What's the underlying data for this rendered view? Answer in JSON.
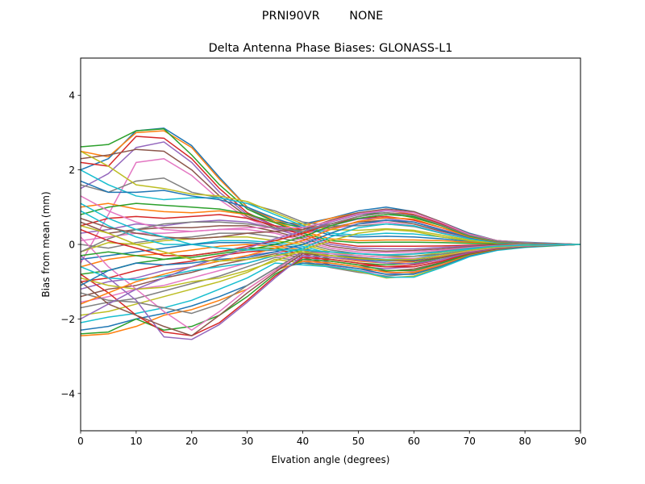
{
  "header": {
    "suptitle": "PRNI90VR        NONE"
  },
  "chart_data": {
    "type": "line",
    "title": "Delta Antenna Phase Biases: GLONASS-L1",
    "xlabel": "Elvation angle (degrees)",
    "ylabel": "Bias from mean (mm)",
    "xlim": [
      0,
      90
    ],
    "ylim": [
      -5,
      5
    ],
    "xticks": [
      0,
      10,
      20,
      30,
      40,
      50,
      60,
      70,
      80,
      90
    ],
    "yticks": [
      -4,
      -2,
      0,
      2,
      4
    ],
    "ytick_labels": [
      "−4",
      "−2",
      "0",
      "2",
      "4"
    ],
    "grid": false,
    "legend": "none",
    "palette": [
      "#1f77b4",
      "#ff7f0e",
      "#2ca02c",
      "#d62728",
      "#9467bd",
      "#8c564b",
      "#e377c2",
      "#7f7f7f",
      "#bcbd22",
      "#17becf"
    ],
    "x": [
      0,
      5,
      10,
      15,
      20,
      25,
      30,
      35,
      40,
      45,
      50,
      55,
      60,
      65,
      70,
      75,
      80,
      85,
      90
    ],
    "series": [
      {
        "values": [
          2.0,
          2.3,
          3.05,
          3.12,
          2.65,
          1.8,
          1.0,
          0.6,
          0.55,
          0.7,
          0.9,
          1.0,
          0.88,
          0.6,
          0.3,
          0.1,
          0.06,
          0.03,
          0.0
        ]
      },
      {
        "values": [
          2.5,
          2.35,
          3.0,
          3.05,
          2.6,
          1.75,
          1.0,
          0.65,
          0.5,
          0.7,
          0.85,
          0.92,
          0.8,
          0.55,
          0.28,
          0.1,
          0.05,
          0.02,
          0.0
        ]
      },
      {
        "values": [
          2.62,
          2.68,
          3.05,
          3.1,
          2.4,
          1.6,
          0.95,
          0.6,
          0.45,
          0.62,
          0.8,
          0.85,
          0.72,
          0.5,
          0.25,
          0.08,
          0.05,
          0.02,
          0.0
        ]
      },
      {
        "values": [
          2.2,
          2.1,
          2.9,
          2.85,
          2.3,
          1.5,
          0.85,
          0.5,
          0.4,
          0.55,
          0.7,
          0.75,
          0.65,
          0.45,
          0.22,
          0.08,
          0.04,
          0.02,
          0.0
        ]
      },
      {
        "values": [
          1.5,
          1.9,
          2.6,
          2.75,
          2.2,
          1.4,
          0.8,
          0.5,
          0.35,
          0.5,
          0.68,
          0.7,
          0.6,
          0.4,
          0.2,
          0.07,
          0.04,
          0.02,
          0.0
        ]
      },
      {
        "values": [
          2.3,
          2.4,
          2.55,
          2.5,
          2.0,
          1.3,
          0.75,
          0.45,
          0.3,
          0.45,
          0.6,
          0.65,
          0.55,
          0.35,
          0.18,
          0.06,
          0.03,
          0.01,
          0.0
        ]
      },
      {
        "values": [
          -0.5,
          0.8,
          2.2,
          2.3,
          1.85,
          1.2,
          0.7,
          0.4,
          0.3,
          0.4,
          0.55,
          0.6,
          0.5,
          0.32,
          0.16,
          0.05,
          0.03,
          0.01,
          0.0
        ]
      },
      {
        "values": [
          1.6,
          1.4,
          1.7,
          1.78,
          1.4,
          1.25,
          1.1,
          0.9,
          0.6,
          0.5,
          0.5,
          0.55,
          0.48,
          0.3,
          0.15,
          0.05,
          0.03,
          0.01,
          0.0
        ]
      },
      {
        "values": [
          2.5,
          2.1,
          1.6,
          1.5,
          1.35,
          1.3,
          1.15,
          0.85,
          0.55,
          0.4,
          0.38,
          0.42,
          0.38,
          0.25,
          0.12,
          0.04,
          0.02,
          0.01,
          0.0
        ]
      },
      {
        "values": [
          2.0,
          1.6,
          1.3,
          1.2,
          1.25,
          1.25,
          1.1,
          0.8,
          0.5,
          0.3,
          0.25,
          0.3,
          0.28,
          0.2,
          0.1,
          0.04,
          0.02,
          0.01,
          0.0
        ]
      },
      {
        "values": [
          1.7,
          1.4,
          1.4,
          1.45,
          1.3,
          1.2,
          1.0,
          0.7,
          0.45,
          0.25,
          0.2,
          0.22,
          0.2,
          0.15,
          0.08,
          0.03,
          0.02,
          0.01,
          0.0
        ]
      },
      {
        "values": [
          1.0,
          1.1,
          0.95,
          0.88,
          0.85,
          0.9,
          0.8,
          0.6,
          0.35,
          0.15,
          0.1,
          0.12,
          0.12,
          0.1,
          0.06,
          0.02,
          0.01,
          0.0,
          0.0
        ]
      },
      {
        "values": [
          0.8,
          1.0,
          1.1,
          1.05,
          1.0,
          0.95,
          0.82,
          0.58,
          0.3,
          0.1,
          0.05,
          0.06,
          0.06,
          0.05,
          0.03,
          0.01,
          0.01,
          0.0,
          0.0
        ]
      },
      {
        "values": [
          0.5,
          0.7,
          0.75,
          0.7,
          0.75,
          0.8,
          0.7,
          0.5,
          0.25,
          0.05,
          -0.05,
          -0.05,
          -0.05,
          -0.04,
          -0.02,
          -0.01,
          0.0,
          0.0,
          0.0
        ]
      },
      {
        "values": [
          0.3,
          0.4,
          0.55,
          0.5,
          0.6,
          0.65,
          0.6,
          0.42,
          0.2,
          0.0,
          -0.1,
          -0.12,
          -0.12,
          -0.08,
          -0.04,
          -0.02,
          -0.01,
          0.0,
          0.0
        ]
      },
      {
        "values": [
          0.6,
          0.3,
          0.4,
          0.45,
          0.45,
          0.5,
          0.5,
          0.35,
          0.15,
          -0.05,
          -0.15,
          -0.18,
          -0.16,
          -0.12,
          -0.06,
          -0.02,
          -0.01,
          0.0,
          0.0
        ]
      },
      {
        "values": [
          0.1,
          0.2,
          0.3,
          0.3,
          0.35,
          0.4,
          0.4,
          0.3,
          0.1,
          -0.1,
          -0.2,
          -0.22,
          -0.2,
          -0.15,
          -0.08,
          -0.03,
          -0.01,
          0.0,
          0.0
        ]
      },
      {
        "values": [
          0.0,
          -0.1,
          0.05,
          0.15,
          0.2,
          0.3,
          0.3,
          0.2,
          0.05,
          -0.15,
          -0.25,
          -0.28,
          -0.25,
          -0.18,
          -0.1,
          -0.04,
          -0.02,
          -0.01,
          0.0
        ]
      },
      {
        "values": [
          -0.2,
          0.05,
          0.0,
          0.1,
          0.15,
          0.2,
          0.2,
          0.1,
          0.0,
          -0.2,
          -0.3,
          -0.35,
          -0.32,
          -0.22,
          -0.12,
          -0.05,
          -0.02,
          -0.01,
          0.0
        ]
      },
      {
        "values": [
          0.9,
          0.5,
          0.2,
          0.0,
          0.0,
          0.1,
          0.1,
          0.05,
          -0.05,
          -0.25,
          -0.35,
          -0.4,
          -0.38,
          -0.26,
          -0.14,
          -0.06,
          -0.03,
          -0.01,
          0.0
        ]
      },
      {
        "values": [
          -0.4,
          -0.3,
          -0.2,
          -0.1,
          0.0,
          0.05,
          0.05,
          0.0,
          -0.1,
          -0.3,
          -0.4,
          -0.45,
          -0.42,
          -0.3,
          -0.16,
          -0.07,
          -0.03,
          -0.01,
          0.0
        ]
      },
      {
        "values": [
          -0.6,
          -0.4,
          -0.3,
          -0.25,
          -0.15,
          -0.05,
          0.0,
          -0.05,
          -0.15,
          -0.35,
          -0.45,
          -0.5,
          -0.46,
          -0.33,
          -0.18,
          -0.08,
          -0.04,
          -0.02,
          0.0
        ]
      },
      {
        "values": [
          -0.8,
          -0.7,
          -0.5,
          -0.4,
          -0.3,
          -0.2,
          -0.1,
          -0.1,
          -0.2,
          -0.4,
          -0.5,
          -0.55,
          -0.5,
          -0.36,
          -0.2,
          -0.09,
          -0.04,
          -0.02,
          0.0
        ]
      },
      {
        "values": [
          -1.0,
          -0.9,
          -0.7,
          -0.55,
          -0.45,
          -0.3,
          -0.2,
          -0.15,
          -0.25,
          -0.45,
          -0.55,
          -0.6,
          -0.55,
          -0.4,
          -0.22,
          -0.1,
          -0.05,
          -0.02,
          0.0
        ]
      },
      {
        "values": [
          -1.2,
          -1.0,
          -0.9,
          -0.7,
          -0.6,
          -0.45,
          -0.3,
          -0.2,
          -0.3,
          -0.5,
          -0.6,
          -0.65,
          -0.6,
          -0.44,
          -0.24,
          -0.11,
          -0.05,
          -0.02,
          0.0
        ]
      },
      {
        "values": [
          -1.4,
          -1.2,
          -1.1,
          -0.9,
          -0.75,
          -0.55,
          -0.4,
          -0.25,
          -0.35,
          -0.55,
          -0.65,
          -0.72,
          -0.66,
          -0.48,
          -0.26,
          -0.12,
          -0.06,
          -0.03,
          0.0
        ]
      },
      {
        "values": [
          -1.55,
          -1.4,
          -1.2,
          -1.1,
          -0.9,
          -0.7,
          -0.5,
          -0.3,
          -0.4,
          -0.58,
          -0.7,
          -0.8,
          -0.72,
          -0.52,
          -0.28,
          -0.13,
          -0.06,
          -0.03,
          0.0
        ]
      },
      {
        "values": [
          -1.7,
          -1.55,
          -1.45,
          -1.25,
          -1.05,
          -0.85,
          -0.6,
          -0.35,
          -0.45,
          -0.62,
          -0.75,
          -0.85,
          -0.78,
          -0.56,
          -0.3,
          -0.14,
          -0.07,
          -0.03,
          0.0
        ]
      },
      {
        "values": [
          -1.9,
          -1.8,
          -1.6,
          -1.4,
          -1.2,
          -1.0,
          -0.75,
          -0.4,
          -0.5,
          -0.6,
          -0.72,
          -0.9,
          -0.85,
          -0.6,
          -0.32,
          -0.15,
          -0.07,
          -0.03,
          0.0
        ]
      },
      {
        "values": [
          -2.1,
          -1.95,
          -1.85,
          -1.7,
          -1.5,
          -1.2,
          -0.9,
          -0.5,
          -0.55,
          -0.6,
          -0.7,
          -0.88,
          -0.88,
          -0.62,
          -0.33,
          -0.16,
          -0.08,
          -0.04,
          0.0
        ]
      },
      {
        "values": [
          -2.3,
          -2.2,
          -2.0,
          -1.85,
          -1.65,
          -1.4,
          -1.1,
          -0.65,
          -0.5,
          -0.55,
          -0.65,
          -0.8,
          -0.8,
          -0.58,
          -0.3,
          -0.14,
          -0.07,
          -0.03,
          0.0
        ]
      },
      {
        "values": [
          -2.45,
          -2.4,
          -2.2,
          -1.9,
          -1.75,
          -1.5,
          -1.2,
          -0.7,
          -0.45,
          -0.5,
          -0.6,
          -0.75,
          -0.75,
          -0.55,
          -0.28,
          -0.13,
          -0.06,
          -0.03,
          0.0
        ]
      },
      {
        "values": [
          -2.4,
          -2.35,
          -2.0,
          -2.3,
          -2.2,
          -1.9,
          -1.4,
          -0.8,
          -0.4,
          -0.45,
          -0.55,
          -0.7,
          -0.7,
          -0.5,
          -0.26,
          -0.12,
          -0.06,
          -0.03,
          0.0
        ]
      },
      {
        "values": [
          -0.8,
          -1.3,
          -1.9,
          -2.35,
          -2.45,
          -2.1,
          -1.5,
          -0.85,
          -0.35,
          -0.4,
          -0.5,
          -0.6,
          -0.6,
          -0.45,
          -0.24,
          -0.11,
          -0.05,
          -0.02,
          0.0
        ]
      },
      {
        "values": [
          -0.3,
          -0.9,
          -1.5,
          -2.48,
          -2.55,
          -2.15,
          -1.55,
          -0.9,
          -0.3,
          -0.35,
          -0.42,
          -0.5,
          -0.52,
          -0.4,
          -0.22,
          -0.1,
          -0.05,
          -0.02,
          0.0
        ]
      },
      {
        "values": [
          -1.0,
          -1.6,
          -1.9,
          -2.2,
          -2.45,
          -1.9,
          -1.3,
          -0.75,
          -0.25,
          -0.3,
          -0.35,
          -0.42,
          -0.45,
          -0.35,
          -0.2,
          -0.09,
          -0.04,
          -0.02,
          0.0
        ]
      },
      {
        "values": [
          0.2,
          -0.6,
          -1.2,
          -1.8,
          -2.3,
          -1.8,
          -1.2,
          -0.7,
          -0.2,
          -0.25,
          -0.3,
          -0.35,
          -0.38,
          -0.3,
          -0.18,
          -0.08,
          -0.04,
          -0.02,
          0.0
        ]
      },
      {
        "values": [
          -1.3,
          -1.5,
          -1.55,
          -1.7,
          -1.85,
          -1.6,
          -1.1,
          -0.65,
          -0.2,
          -0.2,
          -0.25,
          -0.3,
          -0.32,
          -0.26,
          -0.16,
          -0.07,
          -0.03,
          -0.01,
          0.0
        ]
      },
      {
        "values": [
          -0.9,
          -1.1,
          -1.2,
          -1.15,
          -1.0,
          -0.9,
          -0.7,
          -0.45,
          -0.15,
          0.1,
          0.3,
          0.4,
          0.35,
          0.2,
          0.1,
          0.04,
          0.02,
          0.01,
          0.0
        ]
      },
      {
        "values": [
          -0.6,
          -0.9,
          -0.95,
          -0.85,
          -0.7,
          -0.6,
          -0.5,
          -0.3,
          -0.1,
          0.2,
          0.45,
          0.55,
          0.5,
          0.3,
          0.15,
          0.05,
          0.02,
          0.01,
          0.0
        ]
      },
      {
        "values": [
          -1.1,
          -0.7,
          -0.5,
          -0.55,
          -0.5,
          -0.4,
          -0.35,
          -0.2,
          0.0,
          0.3,
          0.55,
          0.65,
          0.6,
          0.38,
          0.18,
          0.06,
          0.03,
          0.01,
          0.0
        ]
      },
      {
        "values": [
          -1.6,
          -1.3,
          -1.0,
          -0.8,
          -0.6,
          -0.45,
          -0.3,
          -0.1,
          0.1,
          0.4,
          0.62,
          0.72,
          0.68,
          0.45,
          0.2,
          0.07,
          0.03,
          0.01,
          0.0
        ]
      },
      {
        "values": [
          -0.3,
          -0.2,
          -0.3,
          -0.4,
          -0.35,
          -0.25,
          -0.15,
          0.0,
          0.2,
          0.5,
          0.7,
          0.8,
          0.75,
          0.5,
          0.22,
          0.08,
          0.04,
          0.02,
          0.0
        ]
      },
      {
        "values": [
          0.4,
          0.1,
          -0.1,
          -0.3,
          -0.3,
          -0.2,
          -0.05,
          0.1,
          0.3,
          0.55,
          0.75,
          0.85,
          0.8,
          0.55,
          0.25,
          0.09,
          0.04,
          0.02,
          0.0
        ]
      },
      {
        "values": [
          -2.0,
          -1.6,
          -1.2,
          -0.9,
          -0.6,
          -0.35,
          -0.1,
          0.15,
          0.35,
          0.6,
          0.8,
          0.9,
          0.85,
          0.58,
          0.27,
          0.1,
          0.05,
          0.02,
          0.0
        ]
      },
      {
        "values": [
          0.7,
          0.45,
          0.3,
          0.2,
          0.15,
          0.2,
          0.3,
          0.35,
          0.4,
          0.65,
          0.85,
          0.95,
          0.88,
          0.6,
          0.28,
          0.1,
          0.05,
          0.02,
          0.0
        ]
      },
      {
        "values": [
          1.3,
          0.9,
          0.6,
          0.4,
          0.35,
          0.4,
          0.45,
          0.45,
          0.45,
          0.62,
          0.82,
          0.92,
          0.85,
          0.58,
          0.27,
          0.1,
          0.05,
          0.02,
          0.0
        ]
      },
      {
        "values": [
          -0.2,
          0.15,
          0.4,
          0.55,
          0.6,
          0.6,
          0.55,
          0.45,
          0.35,
          0.55,
          0.75,
          0.85,
          0.78,
          0.52,
          0.24,
          0.09,
          0.04,
          0.02,
          0.0
        ]
      },
      {
        "values": [
          0.5,
          0.3,
          0.0,
          -0.2,
          -0.4,
          -0.45,
          -0.4,
          -0.3,
          -0.2,
          -0.3,
          -0.38,
          -0.42,
          -0.4,
          -0.3,
          -0.16,
          -0.07,
          -0.03,
          -0.01,
          0.0
        ]
      },
      {
        "values": [
          1.1,
          0.7,
          0.4,
          0.2,
          0.0,
          -0.1,
          -0.15,
          -0.15,
          -0.15,
          -0.2,
          -0.25,
          -0.28,
          -0.26,
          -0.2,
          -0.11,
          -0.05,
          -0.02,
          -0.01,
          0.0
        ]
      }
    ]
  }
}
